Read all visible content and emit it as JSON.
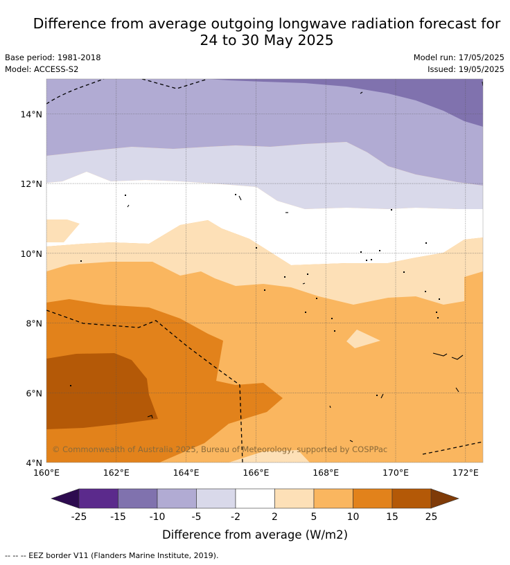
{
  "title_line1": "Difference from average outgoing longwave radiation forecast for",
  "title_line2": "24 to 30 May 2025",
  "base_period": "Base period: 1981-2018",
  "model": "Model: ACCESS-S2",
  "model_run": "Model run: 17/05/2025",
  "issued": "Issued: 19/05/2025",
  "copyright": "© Commonwealth of Australia 2025, Bureau of Meteorology, supported by COSPPac",
  "lat_labels": [
    "14°N",
    "12°N",
    "10°N",
    "8°N",
    "6°N",
    "4°N"
  ],
  "lat_values": [
    14,
    12,
    10,
    8,
    6,
    4
  ],
  "lon_labels": [
    "160°E",
    "162°E",
    "164°E",
    "166°E",
    "168°E",
    "170°E",
    "172°E"
  ],
  "lon_values": [
    160,
    162,
    164,
    166,
    168,
    170,
    172
  ],
  "map_extent": {
    "lon": [
      160,
      172.5
    ],
    "lat": [
      4,
      15
    ]
  },
  "colorbar": {
    "ticks": [
      "-25",
      "-15",
      "-10",
      "-5",
      "-2",
      "2",
      "5",
      "10",
      "15",
      "25"
    ],
    "colors": [
      "#5b2a8c",
      "#8072ae",
      "#b1abd3",
      "#d9d9ea",
      "#ffffff",
      "#fde0b7",
      "#fab65f",
      "#e2821b",
      "#b45907"
    ],
    "under_color": "#2d0b4f",
    "over_color": "#7f3b08",
    "label": "Difference from average (W/m2)"
  },
  "legend_note": "--  --  -- EEZ border V11 (Flanders Marine Institute, 2019)."
}
